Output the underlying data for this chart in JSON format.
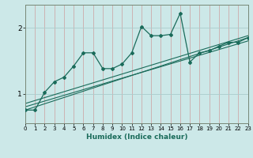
{
  "background_color": "#cce8e8",
  "grid_color_h": "#aacccc",
  "grid_color_v": "#ccaaaa",
  "line_color": "#1a6b5a",
  "xlabel": "Humidex (Indice chaleur)",
  "xlim": [
    0,
    23
  ],
  "ylim": [
    0.55,
    2.35
  ],
  "yticks": [
    1,
    2
  ],
  "xticks": [
    0,
    1,
    2,
    3,
    4,
    5,
    6,
    7,
    8,
    9,
    10,
    11,
    12,
    13,
    14,
    15,
    16,
    17,
    18,
    19,
    20,
    21,
    22,
    23
  ],
  "series1": [
    0.75,
    0.75,
    1.02,
    1.18,
    1.25,
    1.42,
    1.62,
    1.62,
    1.38,
    1.38,
    1.45,
    1.62,
    2.02,
    1.88,
    1.88,
    1.9,
    2.22,
    1.48,
    1.62,
    1.65,
    1.72,
    1.78,
    1.78,
    1.85
  ],
  "series2_x": [
    0,
    23
  ],
  "series2_y": [
    0.75,
    1.85
  ],
  "series3_x": [
    0,
    23
  ],
  "series3_y": [
    0.8,
    1.8
  ],
  "series4_x": [
    0,
    23
  ],
  "series4_y": [
    0.85,
    1.88
  ]
}
